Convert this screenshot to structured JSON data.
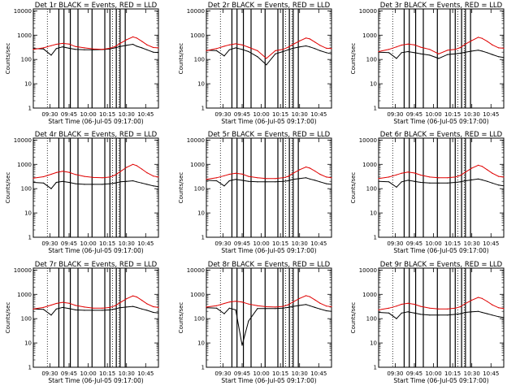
{
  "chart_data": {
    "type": "line",
    "yscale": "log",
    "ylim": [
      1,
      12000
    ],
    "yticks": [
      1,
      10,
      100,
      1000,
      10000
    ],
    "ytick_labels": [
      "1",
      "10",
      "100",
      "1000",
      "10000"
    ],
    "xlim": [
      "09:17",
      "10:55"
    ],
    "xticks": [
      "09:30",
      "09:45",
      "10:00",
      "10:15",
      "10:30",
      "10:45"
    ],
    "ylabel": "Counts/sec",
    "xlabel": "Start Time (06-Jul-05 09:17:00)",
    "grid": false,
    "colors": {
      "events": "#000000",
      "lld": "#e00000"
    },
    "shared": {
      "x": [
        "09:17",
        "09:25",
        "09:31",
        "09:35",
        "09:40",
        "09:45",
        "09:50",
        "09:57",
        "10:04",
        "10:11",
        "10:17",
        "10:21",
        "10:25",
        "10:30",
        "10:35",
        "10:38",
        "10:42",
        "10:46",
        "10:51",
        "10:55"
      ],
      "gaps": [
        [
          "09:31",
          "09:32"
        ],
        [
          "09:41",
          "09:43"
        ],
        [
          "10:04",
          "10:07"
        ],
        [
          "10:16",
          "10:20"
        ],
        [
          "10:31",
          "10:33"
        ]
      ],
      "dotted_lines": [
        "09:28",
        "10:19",
        "10:24"
      ],
      "vertical_lines": [
        "09:37",
        "09:41",
        "09:46",
        "09:52",
        "10:03",
        "10:13",
        "10:17",
        "10:22",
        "10:25",
        "10:29"
      ]
    },
    "panels": [
      {
        "title": "Det 1r  BLACK = Events, RED = LLD",
        "series": [
          {
            "name": "Events",
            "values": [
              280,
              270,
              150,
              280,
              330,
              290,
              260,
              250,
              250,
              255,
              270,
              300,
              340,
              380,
              420,
              350,
              300,
              250,
              200,
              190
            ]
          },
          {
            "name": "LLD",
            "values": [
              260,
              300,
              370,
              420,
              460,
              430,
              340,
              300,
              270,
              260,
              290,
              340,
              460,
              650,
              850,
              760,
              560,
              400,
              310,
              300
            ]
          }
        ]
      },
      {
        "title": "Det 2r  BLACK = Events, RED = LLD",
        "series": [
          {
            "name": "Events",
            "values": [
              240,
              230,
              140,
              250,
              300,
              260,
              210,
              130,
              60,
              170,
              210,
              250,
              290,
              330,
              360,
              330,
              280,
              230,
              190,
              170
            ]
          },
          {
            "name": "LLD",
            "values": [
              230,
              280,
              350,
              400,
              440,
              400,
              320,
              230,
              110,
              230,
              260,
              320,
              420,
              580,
              760,
              700,
              520,
              380,
              290,
              280
            ]
          }
        ]
      },
      {
        "title": "Det 3r  BLACK = Events, RED = LLD",
        "series": [
          {
            "name": "Events",
            "values": [
              200,
              190,
              110,
              190,
              210,
              190,
              170,
              150,
              110,
              160,
              170,
              180,
              200,
              220,
              240,
              220,
              190,
              160,
              130,
              120
            ]
          },
          {
            "name": "LLD",
            "values": [
              210,
              260,
              330,
              390,
              430,
              400,
              320,
              260,
              170,
              240,
              260,
              310,
              430,
              600,
              820,
              740,
              560,
              400,
              300,
              290
            ]
          }
        ]
      },
      {
        "title": "Det 4r  BLACK = Events, RED = LLD",
        "series": [
          {
            "name": "Events",
            "values": [
              180,
              170,
              100,
              180,
              200,
              180,
              160,
              150,
              150,
              150,
              160,
              170,
              190,
              200,
              210,
              190,
              170,
              150,
              130,
              120
            ]
          },
          {
            "name": "LLD",
            "values": [
              270,
              310,
              390,
              460,
              520,
              470,
              380,
              320,
              290,
              280,
              300,
              360,
              500,
              750,
              1000,
              880,
              640,
              450,
              330,
              300
            ]
          }
        ]
      },
      {
        "title": "Det 5r  BLACK = Events, RED = LLD",
        "series": [
          {
            "name": "Events",
            "values": [
              220,
              210,
              130,
              210,
              240,
              220,
              200,
              190,
              190,
              190,
              200,
              210,
              240,
              260,
              280,
              250,
              220,
              190,
              160,
              150
            ]
          },
          {
            "name": "LLD",
            "values": [
              240,
              280,
              340,
              390,
              430,
              400,
              320,
              280,
              260,
              260,
              280,
              320,
              430,
              600,
              780,
              700,
              530,
              390,
              300,
              280
            ]
          }
        ]
      },
      {
        "title": "Det 6r  BLACK = Events, RED = LLD",
        "series": [
          {
            "name": "Events",
            "values": [
              200,
              190,
              115,
              190,
              220,
              200,
              180,
              170,
              170,
              170,
              180,
              190,
              210,
              230,
              250,
              230,
              200,
              170,
              140,
              130
            ]
          },
          {
            "name": "LLD",
            "values": [
              260,
              300,
              370,
              430,
              480,
              440,
              360,
              300,
              280,
              280,
              300,
              350,
              480,
              700,
              920,
              830,
              600,
              430,
              320,
              300
            ]
          }
        ]
      },
      {
        "title": "Det 7r  BLACK = Events, RED = LLD",
        "series": [
          {
            "name": "Events",
            "values": [
              250,
              240,
              140,
              250,
              290,
              260,
              230,
              220,
              220,
              220,
              230,
              250,
              280,
              300,
              320,
              290,
              250,
              220,
              180,
              170
            ]
          },
          {
            "name": "LLD",
            "values": [
              250,
              290,
              360,
              420,
              470,
              430,
              350,
              300,
              270,
              270,
              290,
              340,
              460,
              660,
              860,
              780,
              570,
              410,
              310,
              290
            ]
          }
        ]
      },
      {
        "title": "Det 8r  BLACK = Events, RED = LLD",
        "series": [
          {
            "name": "Events",
            "values": [
              280,
              270,
              160,
              270,
              230,
              8,
              80,
              260,
              260,
              260,
              270,
              290,
              320,
              350,
              380,
              340,
              290,
              250,
              210,
              200
            ]
          },
          {
            "name": "LLD",
            "values": [
              300,
              340,
              420,
              480,
              520,
              480,
              400,
              340,
              310,
              300,
              320,
              370,
              490,
              680,
              880,
              800,
              590,
              430,
              330,
              310
            ]
          }
        ]
      },
      {
        "title": "Det 9r  BLACK = Events, RED = LLD",
        "series": [
          {
            "name": "Events",
            "values": [
              180,
              170,
              100,
              170,
              190,
              170,
              150,
              140,
              140,
              140,
              150,
              160,
              180,
              190,
              200,
              180,
              160,
              140,
              120,
              110
            ]
          },
          {
            "name": "LLD",
            "values": [
              230,
              270,
              330,
              390,
              430,
              390,
              320,
              270,
              250,
              250,
              270,
              310,
              420,
              580,
              750,
              680,
              510,
              370,
              280,
              260
            ]
          }
        ]
      }
    ]
  }
}
